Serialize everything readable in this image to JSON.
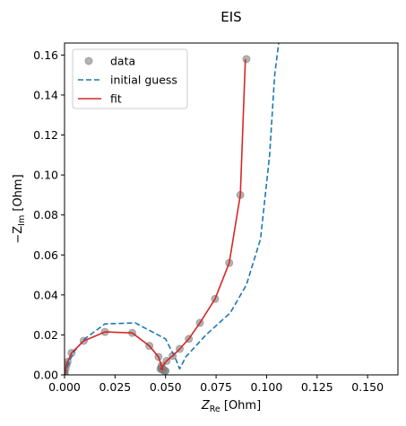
{
  "chart_data": {
    "type": "line",
    "title": "EIS",
    "xlabel_main": "Z",
    "xlabel_sub": "Re",
    "xlabel_unit": " [Ohm]",
    "ylabel_prefix": "−Z",
    "ylabel_sub": "Im",
    "ylabel_unit": " [Ohm]",
    "xlim": [
      0,
      0.165
    ],
    "ylim": [
      0,
      0.166
    ],
    "xticks": [
      0.0,
      0.025,
      0.05,
      0.075,
      0.1,
      0.125,
      0.15
    ],
    "xtick_labels": [
      "0.000",
      "0.025",
      "0.050",
      "0.075",
      "0.100",
      "0.125",
      "0.150"
    ],
    "yticks": [
      0.0,
      0.02,
      0.04,
      0.06,
      0.08,
      0.1,
      0.12,
      0.14,
      0.16
    ],
    "ytick_labels": [
      "0.00",
      "0.02",
      "0.04",
      "0.06",
      "0.08",
      "0.10",
      "0.12",
      "0.14",
      "0.16"
    ],
    "grid": false,
    "legend_position": "top-left",
    "series": [
      {
        "name": "data",
        "kind": "scatter",
        "color": "#808080",
        "x": [
          0.0,
          0.0,
          0.0,
          0.0,
          0.0005,
          0.001,
          0.0015,
          0.0035,
          0.0095,
          0.02,
          0.0335,
          0.042,
          0.0465,
          0.048,
          0.0485,
          0.049,
          0.05,
          0.0495,
          0.0485,
          0.048,
          0.0475,
          0.048,
          0.0505,
          0.0535,
          0.057,
          0.0615,
          0.067,
          0.0745,
          0.0815,
          0.087,
          0.09
        ],
        "y": [
          0.0002,
          0.0005,
          0.001,
          0.002,
          0.003,
          0.005,
          0.0065,
          0.011,
          0.017,
          0.0215,
          0.021,
          0.0145,
          0.009,
          0.0045,
          0.003,
          0.0025,
          0.002,
          0.002,
          0.0025,
          0.003,
          0.003,
          0.0035,
          0.007,
          0.0095,
          0.013,
          0.018,
          0.026,
          0.038,
          0.056,
          0.09,
          0.158
        ]
      },
      {
        "name": "initial guess",
        "kind": "line",
        "style": "dashed",
        "color": "#1f77b4",
        "x": [
          0.0,
          0.001,
          0.0025,
          0.005,
          0.01,
          0.02,
          0.035,
          0.05,
          0.055,
          0.057,
          0.06,
          0.07,
          0.082,
          0.09,
          0.097,
          0.1015,
          0.104,
          0.106
        ],
        "y": [
          0.0,
          0.003,
          0.007,
          0.012,
          0.018,
          0.0255,
          0.026,
          0.018,
          0.008,
          0.003,
          0.009,
          0.02,
          0.031,
          0.045,
          0.068,
          0.11,
          0.15,
          0.166
        ]
      },
      {
        "name": "fit",
        "kind": "line",
        "style": "solid",
        "color": "#d62728",
        "x": [
          0.0,
          0.0005,
          0.001,
          0.0015,
          0.0035,
          0.0095,
          0.02,
          0.0335,
          0.042,
          0.0465,
          0.048,
          0.0485,
          0.0485,
          0.048,
          0.0475,
          0.048,
          0.0505,
          0.0535,
          0.057,
          0.0615,
          0.067,
          0.0745,
          0.0815,
          0.087,
          0.0895
        ],
        "y": [
          0.0002,
          0.003,
          0.005,
          0.0065,
          0.011,
          0.017,
          0.0215,
          0.021,
          0.0145,
          0.009,
          0.0045,
          0.003,
          0.0025,
          0.003,
          0.003,
          0.0035,
          0.007,
          0.0095,
          0.013,
          0.018,
          0.026,
          0.038,
          0.056,
          0.09,
          0.158
        ]
      }
    ]
  }
}
